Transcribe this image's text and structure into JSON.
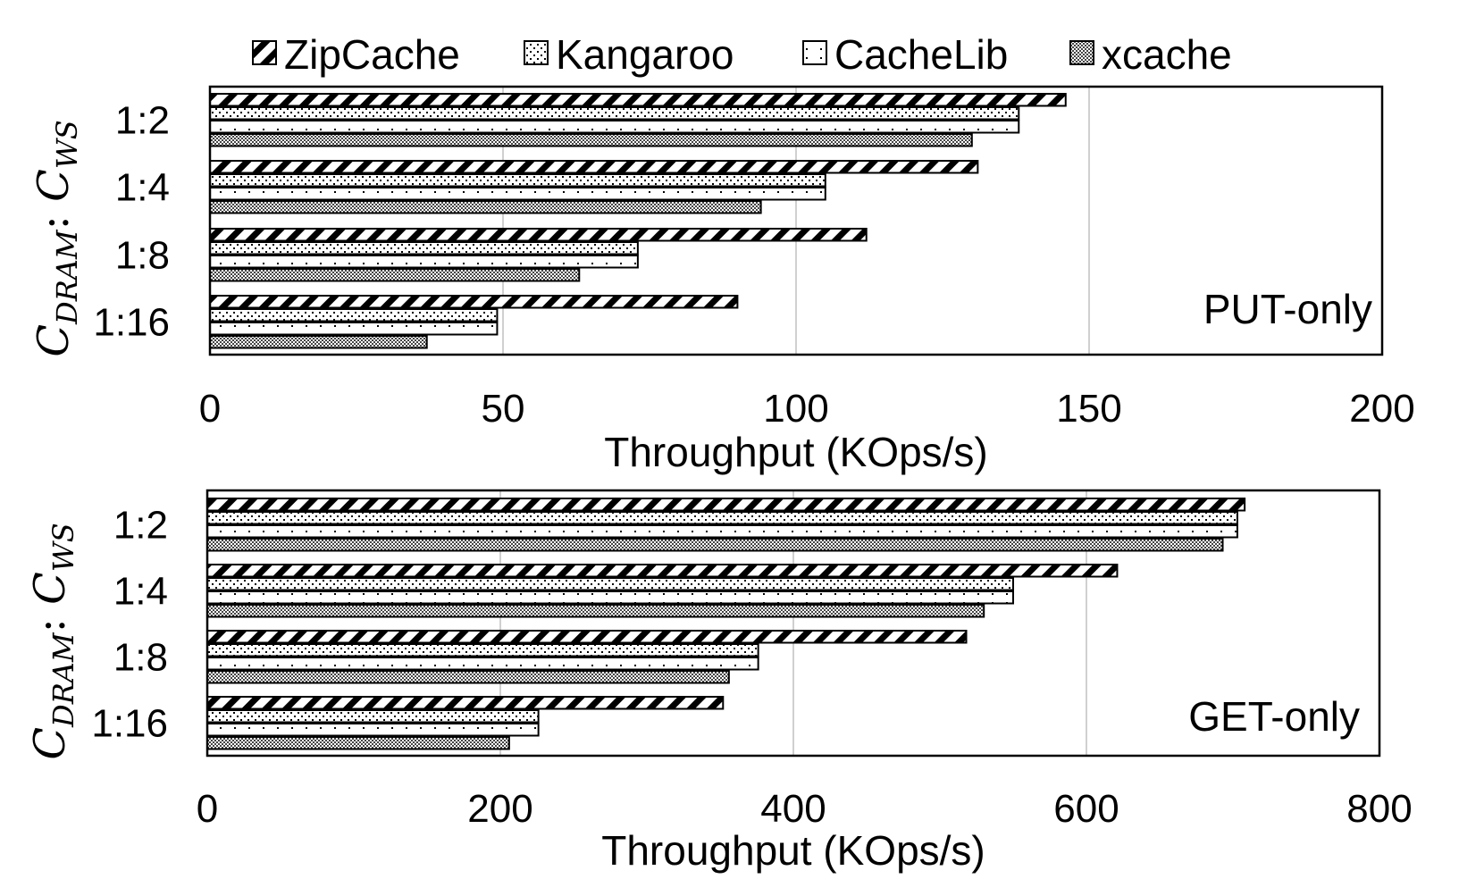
{
  "legend": [
    "ZipCache",
    "Kangaroo",
    "CacheLib",
    "xcache"
  ],
  "colors": {
    "bar_stroke": "#000000",
    "grid": "#d0d0d0",
    "background": "#ffffff"
  },
  "y_axis_label": {
    "main": "C",
    "sub1": "DRAM",
    "sep": ": ",
    "main2": "C",
    "sub2": "WS"
  },
  "chart_data": [
    {
      "type": "bar",
      "orientation": "horizontal",
      "title": "PUT-only",
      "xlabel": "Throughput (KOps/s)",
      "ylabel": "C_DRAM : C_WS",
      "xlim": [
        0,
        200
      ],
      "xticks": [
        "0",
        "50",
        "100",
        "150",
        "200"
      ],
      "categories": [
        "1:2",
        "1:4",
        "1:8",
        "1:16"
      ],
      "grid": true,
      "series": [
        {
          "name": "ZipCache",
          "values": [
            146,
            131,
            112,
            90
          ]
        },
        {
          "name": "Kangaroo",
          "values": [
            138,
            105,
            73,
            49
          ]
        },
        {
          "name": "CacheLib",
          "values": [
            138,
            105,
            73,
            49
          ]
        },
        {
          "name": "xcache",
          "values": [
            130,
            94,
            63,
            37
          ]
        }
      ]
    },
    {
      "type": "bar",
      "orientation": "horizontal",
      "title": "GET-only",
      "xlabel": "Throughput (KOps/s)",
      "ylabel": "C_DRAM : C_WS",
      "xlim": [
        0,
        800
      ],
      "xticks": [
        "0",
        "200",
        "400",
        "600",
        "800"
      ],
      "categories": [
        "1:2",
        "1:4",
        "1:8",
        "1:16"
      ],
      "grid": true,
      "series": [
        {
          "name": "ZipCache",
          "values": [
            708,
            621,
            518,
            352
          ]
        },
        {
          "name": "Kangaroo",
          "values": [
            703,
            550,
            376,
            226
          ]
        },
        {
          "name": "CacheLib",
          "values": [
            703,
            550,
            376,
            226
          ]
        },
        {
          "name": "xcache",
          "values": [
            693,
            530,
            356,
            206
          ]
        }
      ]
    }
  ]
}
